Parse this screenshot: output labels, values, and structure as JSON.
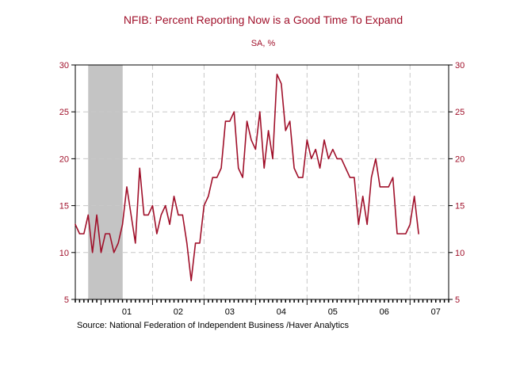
{
  "chart_data": {
    "type": "line",
    "title": "NFIB: Percent Reporting Now is a Good Time To Expand",
    "subtitle": "SA, %",
    "source": "Source:  National Federation of Independent Business /Haver Analytics",
    "ylim": [
      5,
      30
    ],
    "y_ticks": [
      5,
      10,
      15,
      20,
      25,
      30
    ],
    "x_start_year": 2000.5,
    "x_end_year": 2007.75,
    "x_labels": [
      {
        "label": "01",
        "year": 2001
      },
      {
        "label": "02",
        "year": 2002
      },
      {
        "label": "03",
        "year": 2003
      },
      {
        "label": "04",
        "year": 2004
      },
      {
        "label": "05",
        "year": 2005
      },
      {
        "label": "06",
        "year": 2006
      },
      {
        "label": "07",
        "year": 2007
      }
    ],
    "vertical_gridlines": [
      2002,
      2003,
      2004,
      2005,
      2006,
      2007
    ],
    "recession_shading": {
      "start": 2000.75,
      "end": 2001.42
    },
    "grid": true,
    "series": [
      {
        "name": "Percent reporting now is a good time to expand",
        "color": "#a0102a",
        "start_year": 2000.5,
        "months_step": 1,
        "values": [
          13,
          12,
          12,
          14,
          10,
          14,
          10,
          12,
          12,
          10,
          11,
          13,
          17,
          14,
          11,
          19,
          14,
          14,
          15,
          12,
          14,
          15,
          13,
          16,
          14,
          14,
          11,
          7,
          11,
          11,
          15,
          16,
          18,
          18,
          19,
          24,
          24,
          25,
          19,
          18,
          24,
          22,
          21,
          25,
          19,
          23,
          20,
          29,
          28,
          23,
          24,
          19,
          18,
          18,
          22,
          20,
          21,
          19,
          22,
          20,
          21,
          20,
          20,
          19,
          18,
          18,
          13,
          16,
          13,
          18,
          20,
          17,
          17,
          17,
          18,
          12,
          12,
          12,
          13,
          16,
          12
        ]
      }
    ],
    "colors": {
      "line": "#a0102a",
      "axis_text": "#a0102a",
      "grid": "#c8c8c8",
      "recession": "#c4c4c4"
    }
  }
}
